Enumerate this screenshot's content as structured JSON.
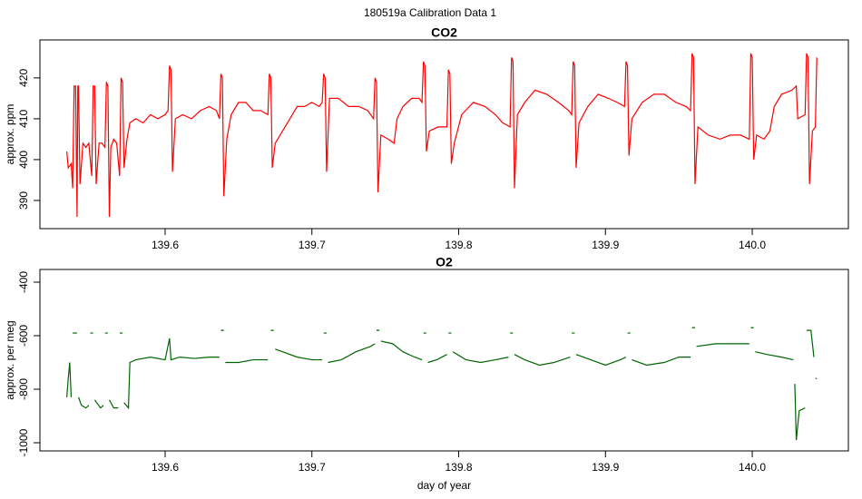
{
  "title": "180519a   Calibration Data 1",
  "chart_data": [
    {
      "type": "line",
      "title": "CO2",
      "ylabel": "approx. ppm",
      "color": "#ff0000",
      "xlim": [
        139.5147,
        140.0655
      ],
      "ylim": [
        383.1,
        429.3
      ],
      "xticks": [
        139.6,
        139.7,
        139.8,
        139.9,
        {
          "value": 140,
          "label": "140.0"
        }
      ],
      "yticks": [
        390,
        400,
        410,
        420
      ],
      "x": [
        139.533,
        139.534,
        139.536,
        139.537,
        139.538,
        139.539,
        139.54,
        139.5405,
        139.541,
        139.542,
        139.544,
        139.546,
        139.548,
        139.55,
        139.551,
        139.552,
        139.553,
        139.555,
        139.557,
        139.559,
        139.56,
        139.561,
        139.562,
        139.563,
        139.565,
        139.567,
        139.569,
        139.57,
        139.571,
        139.572,
        139.574,
        139.576,
        139.58,
        139.585,
        139.59,
        139.595,
        139.6,
        139.602,
        139.603,
        139.604,
        139.605,
        139.607,
        139.612,
        139.618,
        139.624,
        139.63,
        139.635,
        139.637,
        139.638,
        139.639,
        139.64,
        139.642,
        139.645,
        139.65,
        139.655,
        139.66,
        139.665,
        139.67,
        139.671,
        139.672,
        139.673,
        139.675,
        139.68,
        139.685,
        139.69,
        139.695,
        139.7,
        139.705,
        139.707,
        139.708,
        139.709,
        139.71,
        139.712,
        139.718,
        139.725,
        139.732,
        139.738,
        139.742,
        139.743,
        139.744,
        139.745,
        139.747,
        139.752,
        139.756,
        139.758,
        139.762,
        139.768,
        139.773,
        139.775,
        139.776,
        139.777,
        139.778,
        139.78,
        139.786,
        139.792,
        139.793,
        139.794,
        139.795,
        139.797,
        139.802,
        139.81,
        139.818,
        139.825,
        139.83,
        139.835,
        139.836,
        139.837,
        139.838,
        139.84,
        139.845,
        139.852,
        139.86,
        139.868,
        139.875,
        139.877,
        139.878,
        139.879,
        139.88,
        139.882,
        139.888,
        139.895,
        139.902,
        139.908,
        139.913,
        139.914,
        139.915,
        139.916,
        139.918,
        139.925,
        139.933,
        139.94,
        139.948,
        139.955,
        139.958,
        139.959,
        139.96,
        139.961,
        139.963,
        139.97,
        139.978,
        139.985,
        139.992,
        139.998,
        139.999,
        140.0,
        140.001,
        140.003,
        140.008,
        140.012,
        140.015,
        140.02,
        140.027,
        140.03,
        140.031,
        140.036,
        140.037,
        140.038,
        140.039,
        140.041,
        140.043,
        140.044
      ],
      "values": [
        402,
        398,
        399,
        393,
        418,
        418,
        386,
        418,
        418,
        394,
        404,
        403,
        404,
        396,
        418,
        418,
        394,
        404,
        404,
        403,
        419,
        418,
        386,
        403,
        405,
        404,
        396,
        420,
        419,
        398,
        405,
        409,
        410,
        409,
        411,
        410,
        411,
        412,
        423,
        422,
        397,
        410,
        411,
        410,
        412,
        413,
        412,
        410,
        421,
        420,
        391,
        405,
        411,
        414,
        414,
        412,
        412,
        411,
        421,
        420,
        398,
        404,
        407,
        410,
        413,
        413,
        414,
        413,
        414,
        421,
        420,
        397,
        415,
        415,
        413,
        413,
        412,
        410,
        420,
        419,
        392,
        406,
        405,
        404,
        410,
        413,
        415,
        415,
        414,
        424,
        423,
        402,
        407,
        408,
        408,
        422,
        421,
        399,
        404,
        411,
        414,
        413,
        411,
        409,
        408,
        425,
        424,
        393,
        411,
        414,
        417,
        416,
        414,
        412,
        411,
        424,
        423,
        398,
        409,
        413,
        416,
        415,
        414,
        413,
        424,
        423,
        401,
        410,
        414,
        416,
        416,
        414,
        413,
        412,
        426,
        425,
        394,
        408,
        406,
        405,
        406,
        406,
        405,
        426,
        425,
        400,
        406,
        405,
        407,
        413,
        416,
        417,
        418,
        410,
        411,
        426,
        425,
        394,
        407,
        408,
        425
      ]
    },
    {
      "type": "line",
      "title": "O2",
      "xlabel": "day of year",
      "ylabel": "approx. per meg",
      "color": "#006400",
      "xlim": [
        139.5147,
        140.0655
      ],
      "ylim": [
        -1030.5,
        -352.5
      ],
      "xticks": [
        139.6,
        139.7,
        139.8,
        139.9,
        {
          "value": 140,
          "label": "140.0"
        }
      ],
      "yticks": [
        -1000,
        -800,
        -600,
        -400
      ],
      "x": [
        139.533,
        139.534,
        139.535,
        139.536,
        null,
        139.537,
        139.54,
        null,
        139.541,
        139.543,
        139.546,
        139.548,
        null,
        139.549,
        139.551,
        null,
        139.552,
        139.556,
        139.558,
        null,
        139.559,
        139.561,
        null,
        139.562,
        139.565,
        139.568,
        null,
        139.569,
        139.571,
        null,
        139.572,
        139.575,
        139.576,
        139.58,
        139.59,
        139.6,
        139.603,
        139.604,
        139.61,
        139.62,
        139.63,
        139.637,
        null,
        139.638,
        139.64,
        null,
        139.641,
        139.65,
        139.66,
        139.67,
        null,
        139.672,
        139.674,
        null,
        139.675,
        139.68,
        139.69,
        139.7,
        139.707,
        null,
        139.708,
        139.71,
        null,
        139.711,
        139.72,
        139.73,
        139.74,
        139.743,
        null,
        139.744,
        139.746,
        null,
        139.747,
        139.755,
        139.762,
        139.77,
        139.775,
        null,
        139.776,
        139.778,
        null,
        139.779,
        139.785,
        139.792,
        null,
        139.793,
        139.795,
        null,
        139.796,
        139.805,
        139.815,
        139.825,
        139.834,
        null,
        139.835,
        139.837,
        null,
        139.838,
        139.845,
        139.855,
        139.865,
        139.876,
        null,
        139.877,
        139.879,
        null,
        139.88,
        139.89,
        139.9,
        139.91,
        139.914,
        null,
        139.915,
        139.917,
        null,
        139.918,
        139.928,
        139.94,
        139.95,
        139.958,
        null,
        139.959,
        139.961,
        null,
        139.962,
        139.975,
        139.99,
        139.998,
        null,
        139.999,
        140.001,
        null,
        140.002,
        140.01,
        140.02,
        140.028,
        null,
        140.029,
        140.03,
        140.032,
        140.036,
        null,
        140.037,
        140.04,
        140.042,
        null,
        140.043,
        140.044
      ],
      "values": [
        -830,
        -760,
        -700,
        -830,
        null,
        -590,
        -590,
        null,
        -830,
        -860,
        -870,
        -860,
        null,
        -590,
        -590,
        null,
        -840,
        -870,
        -860,
        null,
        -590,
        -590,
        null,
        -840,
        -870,
        -870,
        null,
        -590,
        -590,
        null,
        -850,
        -870,
        -700,
        -690,
        -680,
        -690,
        -610,
        -690,
        -680,
        -685,
        -680,
        -680,
        null,
        -580,
        -580,
        null,
        -700,
        -700,
        -690,
        -690,
        null,
        -580,
        -580,
        null,
        -650,
        -660,
        -680,
        -690,
        -690,
        null,
        -590,
        -590,
        null,
        -700,
        -690,
        -660,
        -640,
        -630,
        null,
        -580,
        -580,
        null,
        -620,
        -630,
        -660,
        -680,
        -690,
        null,
        -590,
        -590,
        null,
        -700,
        -690,
        -670,
        null,
        -590,
        -590,
        null,
        -660,
        -690,
        -700,
        -690,
        -680,
        null,
        -590,
        -590,
        null,
        -670,
        -690,
        -710,
        -700,
        -680,
        null,
        -590,
        -590,
        null,
        -670,
        -690,
        -710,
        -690,
        -680,
        null,
        -590,
        -590,
        null,
        -690,
        -710,
        -700,
        -680,
        -680,
        null,
        -570,
        -570,
        null,
        -640,
        -630,
        -630,
        -630,
        null,
        -570,
        -570,
        null,
        -660,
        -670,
        -680,
        -690,
        null,
        -780,
        -990,
        -880,
        -870,
        null,
        -580,
        -580,
        -680,
        null,
        -760,
        -760
      ]
    }
  ]
}
